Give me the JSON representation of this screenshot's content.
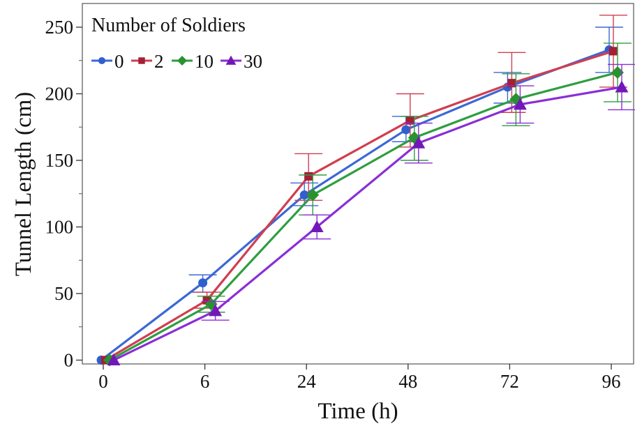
{
  "chart_data": {
    "type": "line",
    "xlabel": "Time (h)",
    "ylabel": "Tunnel Length (cm)",
    "categories": [
      "0",
      "6",
      "24",
      "48",
      "72",
      "96"
    ],
    "ylim": [
      0,
      260
    ],
    "yticks": [
      0,
      50,
      100,
      150,
      200,
      250
    ],
    "grid": false,
    "error_bars": true,
    "legend": {
      "title": "Number of Soldiers",
      "placement": "top-left"
    },
    "series": [
      {
        "name": "0",
        "color": "#3b68d6",
        "marker": "circle",
        "values": [
          0,
          58,
          124,
          173,
          205,
          233
        ],
        "err_low": [
          0,
          51,
          116,
          164,
          193,
          216
        ],
        "err_high": [
          0,
          64,
          133,
          183,
          216,
          250
        ]
      },
      {
        "name": "2",
        "color": "#d03e50",
        "marker": "square",
        "values": [
          0,
          45,
          138,
          180,
          208,
          232
        ],
        "err_low": [
          0,
          39,
          120,
          160,
          186,
          205
        ],
        "err_high": [
          0,
          51,
          155,
          200,
          231,
          259
        ]
      },
      {
        "name": "10",
        "color": "#2e9e3f",
        "marker": "diamond",
        "values": [
          0,
          42,
          124,
          167,
          196,
          216
        ],
        "err_low": [
          0,
          36,
          109,
          150,
          176,
          194
        ],
        "err_high": [
          0,
          48,
          139,
          183,
          215,
          238
        ]
      },
      {
        "name": "30",
        "color": "#8a2ed6",
        "marker": "triangle",
        "values": [
          0,
          37,
          100,
          163,
          192,
          205
        ],
        "err_low": [
          0,
          30,
          91,
          148,
          178,
          188
        ],
        "err_high": [
          0,
          44,
          109,
          178,
          206,
          222
        ]
      }
    ]
  }
}
